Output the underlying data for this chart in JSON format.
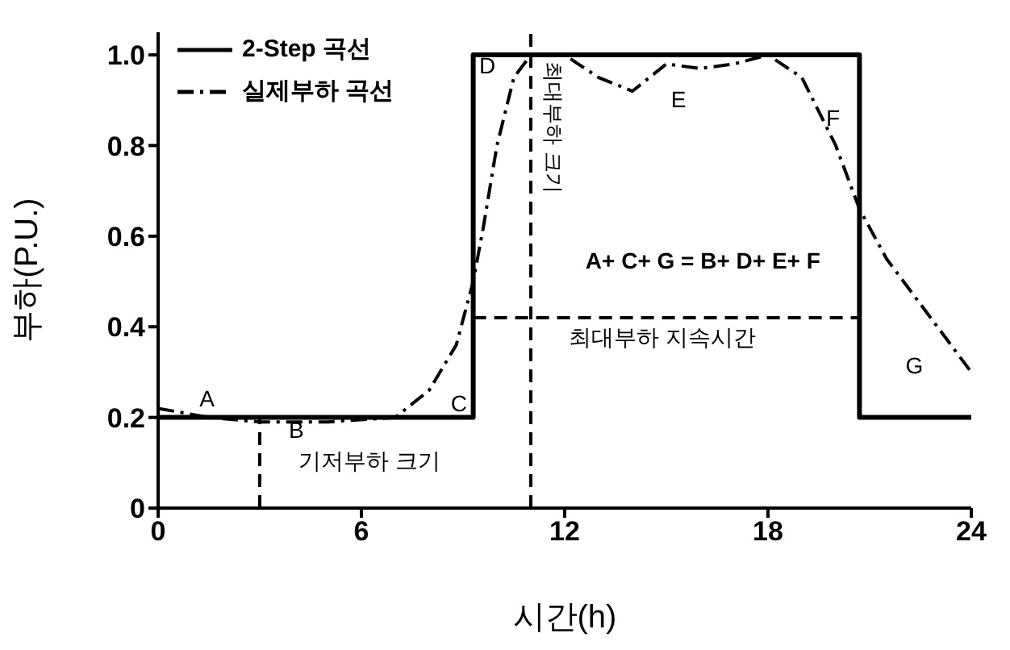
{
  "chart_data": {
    "type": "line",
    "xlabel": "시간(h)",
    "ylabel": "부하(P.U.)",
    "xlim": [
      0,
      24
    ],
    "xticks": [
      0,
      6,
      12,
      18,
      24
    ],
    "ylim": [
      0,
      1.05
    ],
    "yticks": [
      0,
      0.2,
      0.4,
      0.6,
      0.8,
      {
        "value": 1,
        "label": "1.0"
      }
    ],
    "grid": false,
    "legend": "top left",
    "marker": "none",
    "series": [
      {
        "name": "2-Step 곡선",
        "color": "#000000",
        "line_style": "solid",
        "x": [
          0,
          9.3,
          9.3,
          20.7,
          20.7,
          24
        ],
        "values": [
          0.2,
          0.2,
          1,
          1,
          0.2,
          0.2
        ]
      },
      {
        "name": "실제부하 곡선",
        "color": "#000000",
        "line_style": "dashed",
        "x": [
          0,
          1.5,
          3,
          5,
          7,
          8,
          8.8,
          9.3,
          9.6,
          10,
          10.5,
          11,
          12,
          13,
          14,
          15,
          16,
          17,
          18,
          19,
          20,
          20.7,
          21.5,
          22.5,
          23.5,
          24
        ],
        "values": [
          0.22,
          0.2,
          0.19,
          0.19,
          0.2,
          0.26,
          0.36,
          0.5,
          0.62,
          0.8,
          0.95,
          1,
          1,
          0.95,
          0.92,
          0.98,
          0.97,
          0.98,
          1,
          0.95,
          0.8,
          0.66,
          0.55,
          0.45,
          0.35,
          0.3
        ]
      },
      {
        "color": "#000000",
        "line_style": "dotted",
        "x": [
          9.3,
          20.7
        ],
        "values": [
          0.42,
          0.42
        ]
      },
      {
        "color": "#000000",
        "line_style": "dotted",
        "x": [
          3,
          3
        ],
        "values": [
          0,
          0.2
        ]
      }
    ],
    "ref_lines": [
      {
        "axis": "x",
        "value": 11,
        "label": "최대부하 크기",
        "line_style": "dotted",
        "color": "#000000"
      }
    ],
    "annotations": [
      "A",
      "B",
      "C",
      "D",
      "E",
      "F",
      "G",
      "A+ C+ G = B+ D+ E+ F",
      "기저부하 크기",
      "최대부하 지속시간"
    ]
  }
}
